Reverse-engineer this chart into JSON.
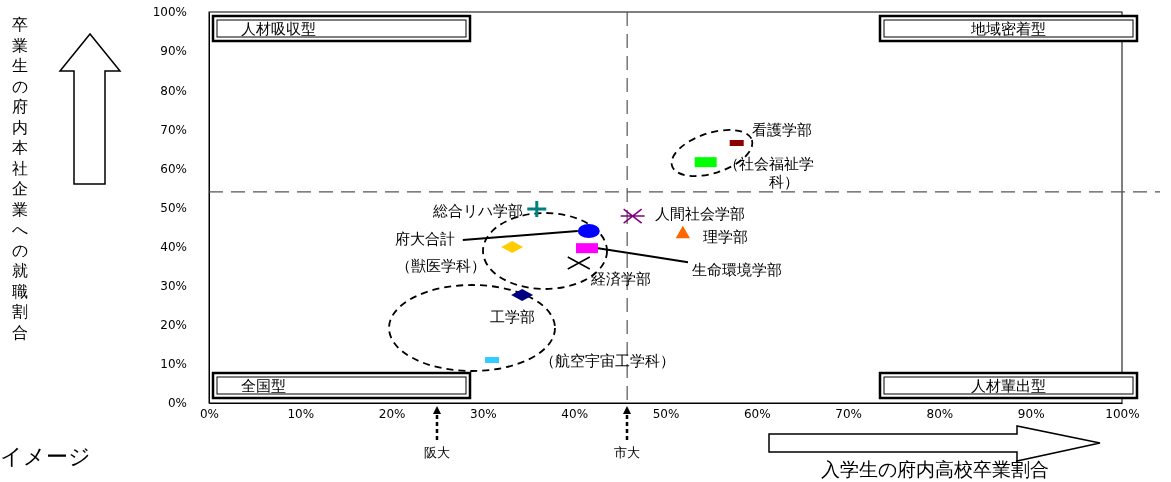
{
  "chart_data": {
    "type": "scatter",
    "xlabel": "入学生の府内高校卒業割合",
    "ylabel": "卒業生の府内本社企業への就職割合",
    "xlim": [
      0,
      100
    ],
    "ylim": [
      0,
      100
    ],
    "xticks": [
      {
        "value": 0,
        "label": "0%"
      },
      {
        "value": 10,
        "label": "10%"
      },
      {
        "value": 20,
        "label": "20%"
      },
      {
        "value": 30,
        "label": "30%"
      },
      {
        "value": 40,
        "label": "40%"
      },
      {
        "value": 50,
        "label": "50%"
      },
      {
        "value": 60,
        "label": "60%"
      },
      {
        "value": 70,
        "label": "70%"
      },
      {
        "value": 80,
        "label": "80%"
      },
      {
        "value": 90,
        "label": "90%"
      },
      {
        "value": 100,
        "label": "100%"
      }
    ],
    "yticks": [
      {
        "value": 0,
        "label": "0%"
      },
      {
        "value": 10,
        "label": "10%"
      },
      {
        "value": 20,
        "label": "20%"
      },
      {
        "value": 30,
        "label": "30%"
      },
      {
        "value": 40,
        "label": "40%"
      },
      {
        "value": 50,
        "label": "50%"
      },
      {
        "value": 60,
        "label": "60%"
      },
      {
        "value": 70,
        "label": "70%"
      },
      {
        "value": 80,
        "label": "80%"
      },
      {
        "value": 90,
        "label": "90%"
      },
      {
        "value": 100,
        "label": "100%"
      }
    ],
    "grid": false,
    "ref_lines": [
      {
        "axis": "x",
        "value": 45.8,
        "line_style": "dashed",
        "color": "#555555"
      },
      {
        "axis": "y",
        "value": 54,
        "line_style": "dashed",
        "color": "#555555"
      }
    ],
    "series": [
      {
        "name": "看護学部",
        "color": "#8b0000",
        "marker": "square",
        "x": [
          57.8
        ],
        "values": [
          66.5
        ]
      },
      {
        "name": "（社会福祉学科）",
        "color": "#00ff00",
        "marker": "square",
        "x": [
          54.4
        ],
        "values": [
          61.6
        ]
      },
      {
        "name": "人間社会学部",
        "color": "#800080",
        "marker": "cross",
        "x": [
          46.4
        ],
        "values": [
          47.8
        ]
      },
      {
        "name": "理学部",
        "color": "#ff6600",
        "marker": "triangle",
        "x": [
          51.9
        ],
        "values": [
          43.2
        ]
      },
      {
        "name": "経済学部",
        "color": "#000000",
        "marker": "cross",
        "x": [
          40.5
        ],
        "values": [
          35.8
        ]
      },
      {
        "name": "生命環境学部",
        "color": "#ff00ff",
        "marker": "square",
        "x": [
          41.4
        ],
        "values": [
          39.6
        ]
      },
      {
        "name": "府大合計",
        "color": "#0000ff",
        "marker": "circle",
        "x": [
          41.6
        ],
        "values": [
          44.0
        ]
      },
      {
        "name": "総合リハ学部",
        "color": "#008080",
        "marker": "cross",
        "x": [
          35.9
        ],
        "values": [
          49.6
        ]
      },
      {
        "name": "（獣医学科）",
        "color": "#ffcc00",
        "marker": "diamond",
        "x": [
          33.2
        ],
        "values": [
          39.9
        ]
      },
      {
        "name": "工学部",
        "color": "#000080",
        "marker": "diamond",
        "x": [
          34.3
        ],
        "values": [
          27.6
        ]
      },
      {
        "name": "（航空宇宙工学科）",
        "color": "#33ccff",
        "marker": "square",
        "x": [
          31.0
        ],
        "values": [
          11.0
        ]
      }
    ],
    "annotations": [
      "人材吸収型",
      "地域密着型",
      "全国型",
      "人材輩出型",
      "阪大",
      "市大",
      "イメージ"
    ]
  }
}
